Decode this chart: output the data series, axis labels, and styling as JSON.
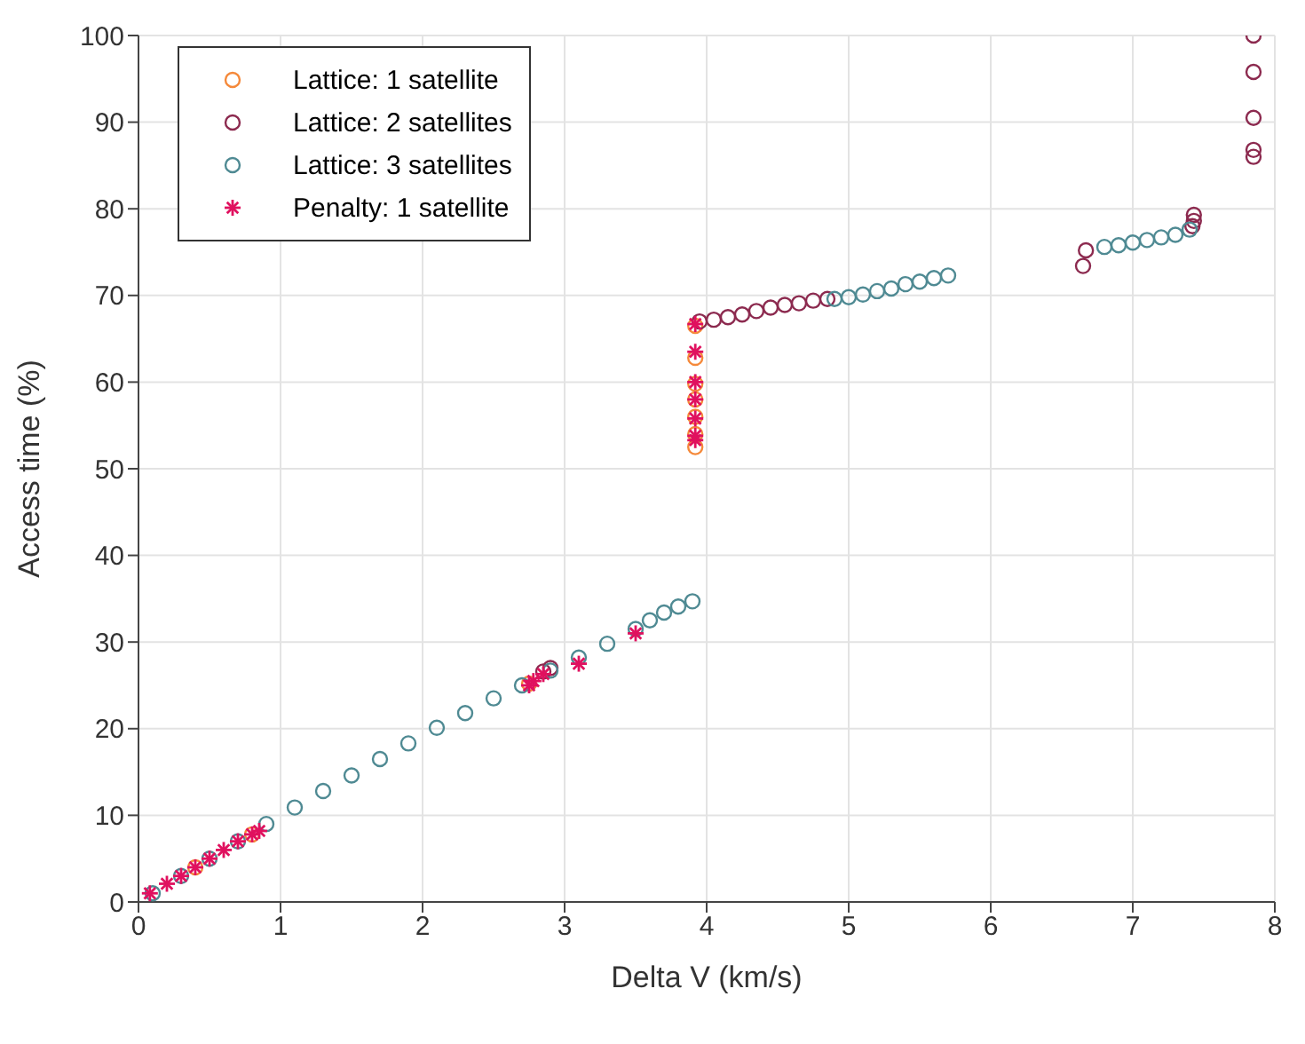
{
  "chart_data": {
    "type": "scatter",
    "xlabel": "Delta V (km/s)",
    "ylabel": "Access time (%)",
    "xlim": [
      0,
      8
    ],
    "ylim": [
      0,
      100
    ],
    "xticks": [
      0,
      1,
      2,
      3,
      4,
      5,
      6,
      7,
      8
    ],
    "yticks": [
      0,
      10,
      20,
      30,
      40,
      50,
      60,
      70,
      80,
      90,
      100
    ],
    "grid": true,
    "legend": "top left",
    "series": [
      {
        "name": "Lattice: 1 satellite",
        "color": "#f5893a",
        "marker": "circle",
        "x": [
          0.4,
          0.8,
          2.75,
          3.92,
          3.92,
          3.92,
          3.92,
          3.92,
          3.92,
          3.92
        ],
        "values": [
          4,
          7.8,
          25.2,
          52.5,
          54,
          56,
          58,
          59.8,
          62.8,
          66.5
        ]
      },
      {
        "name": "Lattice: 2 satellites",
        "color": "#8c2a4f",
        "marker": "circle",
        "x": [
          2.85,
          2.9,
          3.95,
          4.05,
          4.15,
          4.25,
          4.35,
          4.45,
          4.55,
          4.65,
          4.75,
          4.85,
          6.65,
          6.67,
          7.42,
          7.43,
          7.43,
          7.85,
          7.85,
          7.85,
          7.85,
          7.85
        ],
        "values": [
          26.6,
          27,
          67,
          67.2,
          67.5,
          67.8,
          68.2,
          68.6,
          68.9,
          69.1,
          69.4,
          69.6,
          73.4,
          75.2,
          78,
          78.6,
          79.3,
          86,
          86.8,
          90.5,
          95.8,
          100
        ]
      },
      {
        "name": "Lattice: 3 satellites",
        "color": "#4f8a93",
        "marker": "circle",
        "x": [
          0.1,
          0.3,
          0.5,
          0.7,
          0.9,
          1.1,
          1.3,
          1.5,
          1.7,
          1.9,
          2.1,
          2.3,
          2.5,
          2.7,
          2.9,
          3.1,
          3.3,
          3.5,
          3.6,
          3.7,
          3.8,
          3.9,
          4.9,
          5.0,
          5.1,
          5.2,
          5.3,
          5.4,
          5.5,
          5.6,
          5.7,
          6.8,
          6.9,
          7.0,
          7.1,
          7.2,
          7.3,
          7.4
        ],
        "values": [
          1,
          3,
          5,
          7,
          9,
          10.9,
          12.8,
          14.6,
          16.5,
          18.3,
          20.1,
          21.8,
          23.5,
          25,
          26.7,
          28.2,
          29.8,
          31.5,
          32.5,
          33.4,
          34.1,
          34.7,
          69.6,
          69.8,
          70.1,
          70.5,
          70.8,
          71.3,
          71.6,
          72,
          72.3,
          75.6,
          75.8,
          76.1,
          76.4,
          76.7,
          77,
          77.6
        ]
      },
      {
        "name": "Penalty: 1 satellite",
        "color": "#e0115f",
        "marker": "cross",
        "x": [
          0.08,
          0.2,
          0.3,
          0.4,
          0.5,
          0.6,
          0.7,
          0.8,
          0.85,
          2.75,
          2.78,
          2.85,
          3.1,
          3.5,
          3.92,
          3.92,
          3.92,
          3.92,
          3.92,
          3.92,
          3.92
        ],
        "values": [
          1,
          2.1,
          3,
          4,
          5,
          6,
          7,
          7.8,
          8.2,
          25,
          25.5,
          26.3,
          27.5,
          31,
          53.3,
          53.8,
          55.8,
          58,
          60,
          63.5,
          66.7
        ]
      }
    ]
  }
}
